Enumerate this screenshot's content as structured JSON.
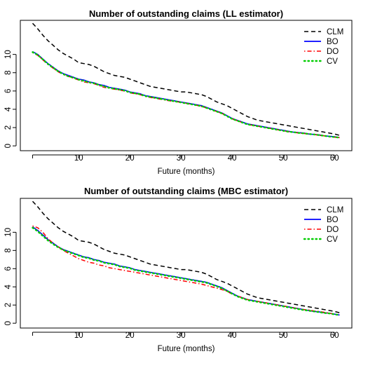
{
  "chart_data": [
    {
      "type": "line",
      "title": "Number of outstanding claims (LL estimator)",
      "xlabel": "Future (months)",
      "ylabel": "",
      "xlim": [
        1,
        61
      ],
      "ylim": [
        0,
        13.2
      ],
      "x_ticks": [
        10,
        20,
        30,
        40,
        50,
        60
      ],
      "y_ticks": [
        0,
        2,
        4,
        6,
        8,
        10
      ],
      "legend_position": "top-right",
      "grid": false,
      "x": [
        1,
        2,
        3,
        4,
        5,
        6,
        7,
        8,
        9,
        10,
        11,
        12,
        13,
        14,
        15,
        16,
        17,
        18,
        19,
        20,
        21,
        22,
        23,
        24,
        25,
        26,
        27,
        28,
        29,
        30,
        31,
        32,
        33,
        34,
        35,
        36,
        37,
        38,
        39,
        40,
        41,
        42,
        43,
        44,
        45,
        46,
        47,
        48,
        49,
        50,
        51,
        52,
        53,
        54,
        55,
        56,
        57,
        58,
        59,
        60,
        61
      ],
      "series": [
        {
          "name": "CLM",
          "color": "#000000",
          "dash": "dashed",
          "values": [
            13.4,
            12.8,
            12.1,
            11.5,
            11.0,
            10.5,
            10.1,
            9.8,
            9.5,
            9.1,
            9.0,
            8.9,
            8.7,
            8.4,
            8.1,
            7.9,
            7.7,
            7.6,
            7.5,
            7.3,
            7.1,
            6.9,
            6.7,
            6.5,
            6.4,
            6.3,
            6.2,
            6.1,
            6.0,
            5.9,
            5.9,
            5.8,
            5.7,
            5.6,
            5.4,
            5.1,
            4.8,
            4.6,
            4.4,
            4.1,
            3.8,
            3.5,
            3.2,
            3.0,
            2.8,
            2.7,
            2.6,
            2.5,
            2.4,
            2.3,
            2.2,
            2.1,
            2.0,
            1.9,
            1.8,
            1.7,
            1.6,
            1.5,
            1.4,
            1.3,
            1.15
          ]
        },
        {
          "name": "BO",
          "color": "#0000ff",
          "dash": "solid",
          "values": [
            10.3,
            10.0,
            9.5,
            9.0,
            8.6,
            8.2,
            7.9,
            7.7,
            7.5,
            7.3,
            7.2,
            7.0,
            6.9,
            6.7,
            6.6,
            6.4,
            6.3,
            6.2,
            6.1,
            5.9,
            5.8,
            5.7,
            5.5,
            5.4,
            5.3,
            5.2,
            5.1,
            5.0,
            4.9,
            4.8,
            4.7,
            4.6,
            4.5,
            4.4,
            4.2,
            4.0,
            3.8,
            3.6,
            3.3,
            3.0,
            2.8,
            2.6,
            2.4,
            2.3,
            2.2,
            2.1,
            2.0,
            1.9,
            1.8,
            1.7,
            1.6,
            1.5,
            1.45,
            1.4,
            1.3,
            1.25,
            1.2,
            1.1,
            1.05,
            1.0,
            0.9
          ]
        },
        {
          "name": "DO",
          "color": "#ff0000",
          "dash": "dotdash",
          "values": [
            10.2,
            9.9,
            9.4,
            8.9,
            8.5,
            8.1,
            7.8,
            7.6,
            7.4,
            7.2,
            7.0,
            6.9,
            6.8,
            6.6,
            6.4,
            6.3,
            6.2,
            6.1,
            6.0,
            5.8,
            5.7,
            5.6,
            5.4,
            5.3,
            5.2,
            5.1,
            5.0,
            4.9,
            4.85,
            4.75,
            4.65,
            4.55,
            4.45,
            4.3,
            4.15,
            3.95,
            3.75,
            3.55,
            3.25,
            2.95,
            2.75,
            2.55,
            2.35,
            2.25,
            2.15,
            2.05,
            1.95,
            1.85,
            1.75,
            1.65,
            1.55,
            1.5,
            1.4,
            1.35,
            1.3,
            1.25,
            1.15,
            1.1,
            1.0,
            0.95,
            0.9
          ]
        },
        {
          "name": "CV",
          "color": "#00cd00",
          "dash": "dotted",
          "values": [
            10.25,
            9.95,
            9.45,
            8.95,
            8.55,
            8.15,
            7.85,
            7.6,
            7.45,
            7.25,
            7.1,
            6.95,
            6.85,
            6.65,
            6.5,
            6.35,
            6.25,
            6.15,
            6.05,
            5.85,
            5.75,
            5.65,
            5.45,
            5.35,
            5.25,
            5.15,
            5.05,
            4.95,
            4.85,
            4.75,
            4.65,
            4.55,
            4.45,
            4.35,
            4.15,
            3.95,
            3.75,
            3.55,
            3.25,
            2.95,
            2.75,
            2.55,
            2.35,
            2.25,
            2.15,
            2.05,
            1.95,
            1.85,
            1.75,
            1.65,
            1.55,
            1.5,
            1.42,
            1.37,
            1.3,
            1.25,
            1.18,
            1.1,
            1.02,
            0.97,
            0.9
          ]
        }
      ]
    },
    {
      "type": "line",
      "title": "Number of outstanding claims (MBC estimator)",
      "xlabel": "Future (months)",
      "ylabel": "",
      "xlim": [
        1,
        61
      ],
      "ylim": [
        0,
        13.2
      ],
      "x_ticks": [
        10,
        20,
        30,
        40,
        50,
        60
      ],
      "y_ticks": [
        0,
        2,
        4,
        6,
        8,
        10
      ],
      "legend_position": "top-right",
      "grid": false,
      "x": [
        1,
        2,
        3,
        4,
        5,
        6,
        7,
        8,
        9,
        10,
        11,
        12,
        13,
        14,
        15,
        16,
        17,
        18,
        19,
        20,
        21,
        22,
        23,
        24,
        25,
        26,
        27,
        28,
        29,
        30,
        31,
        32,
        33,
        34,
        35,
        36,
        37,
        38,
        39,
        40,
        41,
        42,
        43,
        44,
        45,
        46,
        47,
        48,
        49,
        50,
        51,
        52,
        53,
        54,
        55,
        56,
        57,
        58,
        59,
        60,
        61
      ],
      "series": [
        {
          "name": "CLM",
          "color": "#000000",
          "dash": "dashed",
          "values": [
            13.4,
            12.8,
            12.1,
            11.5,
            11.0,
            10.5,
            10.1,
            9.8,
            9.5,
            9.1,
            9.0,
            8.9,
            8.7,
            8.4,
            8.1,
            7.9,
            7.7,
            7.6,
            7.5,
            7.3,
            7.1,
            6.9,
            6.7,
            6.5,
            6.4,
            6.3,
            6.2,
            6.1,
            6.0,
            5.9,
            5.9,
            5.8,
            5.7,
            5.6,
            5.4,
            5.1,
            4.8,
            4.6,
            4.4,
            4.1,
            3.8,
            3.5,
            3.2,
            3.0,
            2.8,
            2.7,
            2.6,
            2.5,
            2.4,
            2.3,
            2.2,
            2.1,
            2.0,
            1.9,
            1.8,
            1.7,
            1.6,
            1.5,
            1.4,
            1.3,
            1.15
          ]
        },
        {
          "name": "BO",
          "color": "#0000ff",
          "dash": "solid",
          "values": [
            10.6,
            10.2,
            9.7,
            9.2,
            8.8,
            8.4,
            8.1,
            7.9,
            7.7,
            7.5,
            7.3,
            7.2,
            7.0,
            6.9,
            6.7,
            6.6,
            6.5,
            6.3,
            6.2,
            6.1,
            5.9,
            5.8,
            5.7,
            5.6,
            5.5,
            5.4,
            5.3,
            5.2,
            5.1,
            5.0,
            4.9,
            4.8,
            4.7,
            4.6,
            4.5,
            4.3,
            4.1,
            3.9,
            3.6,
            3.3,
            3.0,
            2.8,
            2.6,
            2.5,
            2.4,
            2.3,
            2.2,
            2.1,
            2.0,
            1.9,
            1.8,
            1.7,
            1.6,
            1.5,
            1.4,
            1.3,
            1.25,
            1.15,
            1.1,
            1.0,
            0.9
          ]
        },
        {
          "name": "DO",
          "color": "#ff0000",
          "dash": "dotdash",
          "values": [
            10.7,
            10.5,
            10.0,
            9.3,
            8.8,
            8.4,
            8.0,
            7.7,
            7.4,
            7.1,
            6.9,
            6.7,
            6.6,
            6.4,
            6.3,
            6.1,
            6.0,
            5.9,
            5.8,
            5.7,
            5.6,
            5.5,
            5.4,
            5.3,
            5.2,
            5.1,
            5.0,
            4.9,
            4.8,
            4.7,
            4.6,
            4.5,
            4.4,
            4.3,
            4.15,
            4.0,
            3.85,
            3.7,
            3.5,
            3.2,
            3.0,
            2.8,
            2.6,
            2.5,
            2.4,
            2.3,
            2.2,
            2.1,
            2.0,
            1.9,
            1.8,
            1.7,
            1.6,
            1.5,
            1.45,
            1.35,
            1.3,
            1.2,
            1.1,
            1.0,
            0.9
          ]
        },
        {
          "name": "CV",
          "color": "#00cd00",
          "dash": "dotted",
          "values": [
            10.5,
            10.1,
            9.6,
            9.1,
            8.7,
            8.35,
            8.05,
            7.85,
            7.65,
            7.45,
            7.25,
            7.15,
            6.95,
            6.85,
            6.65,
            6.55,
            6.45,
            6.25,
            6.15,
            6.05,
            5.85,
            5.75,
            5.65,
            5.55,
            5.45,
            5.35,
            5.25,
            5.15,
            5.05,
            4.95,
            4.85,
            4.75,
            4.65,
            4.55,
            4.45,
            4.25,
            4.05,
            3.85,
            3.55,
            3.25,
            2.95,
            2.75,
            2.55,
            2.45,
            2.35,
            2.25,
            2.15,
            2.05,
            1.95,
            1.85,
            1.75,
            1.65,
            1.55,
            1.45,
            1.38,
            1.3,
            1.22,
            1.13,
            1.08,
            0.98,
            0.9
          ]
        }
      ]
    }
  ]
}
